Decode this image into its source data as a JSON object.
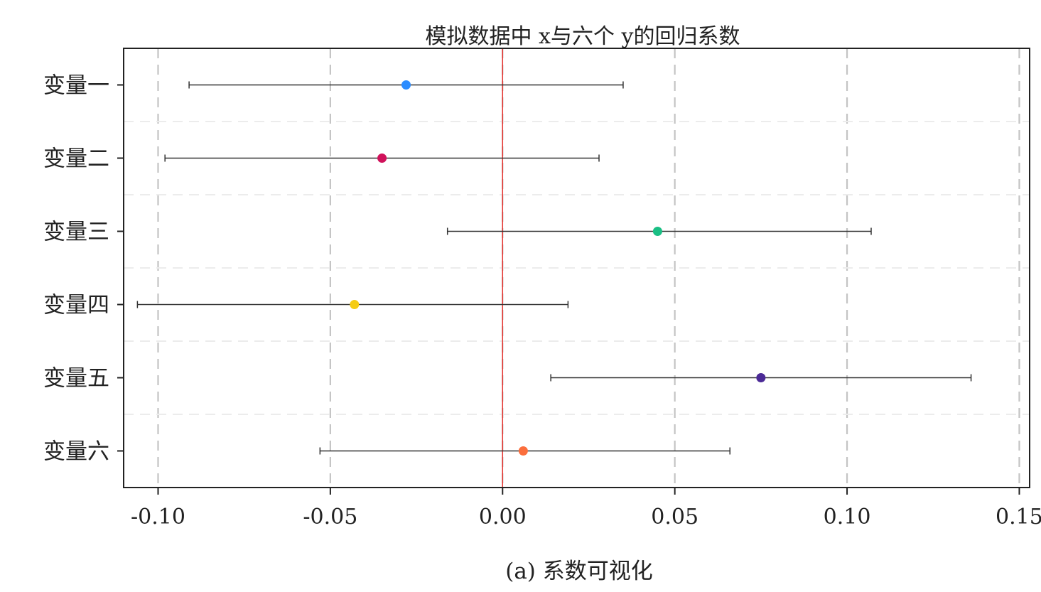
{
  "chart_data": {
    "type": "forest",
    "title": "模拟数据中 x与六个 y的回归系数",
    "caption": "(a) 系数可视化",
    "xlabel": "",
    "ylabel": "",
    "xlim": [
      -0.11,
      0.153
    ],
    "xticks": [
      -0.1,
      -0.05,
      0.0,
      0.05,
      0.1,
      0.15
    ],
    "xtick_labels": [
      "-0.10",
      "-0.05",
      "0.00",
      "0.05",
      "0.10",
      "0.15"
    ],
    "reference_line": {
      "x": 0.0,
      "color": "#e3342f"
    },
    "grid": true,
    "grid_style": "dashed",
    "categories": [
      "变量一",
      "变量二",
      "变量三",
      "变量四",
      "变量五",
      "变量六"
    ],
    "series": [
      {
        "estimate": -0.028,
        "lower": -0.091,
        "upper": 0.035,
        "color": "#2b8cff"
      },
      {
        "estimate": -0.035,
        "lower": -0.098,
        "upper": 0.028,
        "color": "#d0115a"
      },
      {
        "estimate": 0.045,
        "lower": -0.016,
        "upper": 0.107,
        "color": "#1abf84"
      },
      {
        "estimate": -0.043,
        "lower": -0.106,
        "upper": 0.019,
        "color": "#f5cc14"
      },
      {
        "estimate": 0.075,
        "lower": 0.014,
        "upper": 0.136,
        "color": "#4b2a96"
      },
      {
        "estimate": 0.006,
        "lower": -0.053,
        "upper": 0.066,
        "color": "#fb6e3c"
      }
    ]
  }
}
